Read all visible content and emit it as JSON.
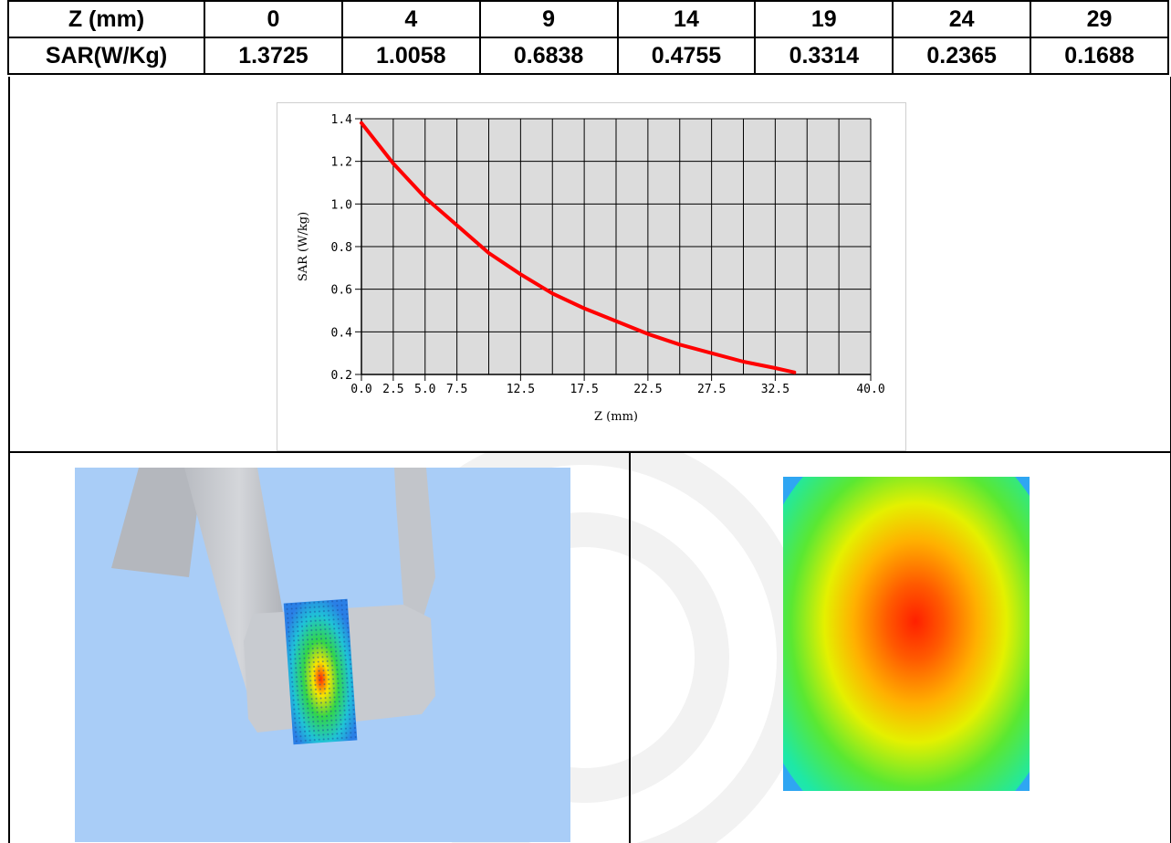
{
  "table": {
    "z_label": "Z (mm)",
    "sar_label": "SAR(W/Kg)",
    "z_values": [
      "0",
      "4",
      "9",
      "14",
      "19",
      "24",
      "29"
    ],
    "sar_values": [
      "1.3725",
      "1.0058",
      "0.6838",
      "0.4755",
      "0.3314",
      "0.2365",
      "0.1688"
    ]
  },
  "chart_data": {
    "type": "line",
    "xlabel": "Z (mm)",
    "ylabel": "SAR (W/kg)",
    "xlim": [
      0,
      40
    ],
    "ylim": [
      0.2,
      1.4
    ],
    "x_tick_labels": [
      "0.0",
      "2.5",
      "5.0",
      "7.5",
      "12.5",
      "17.5",
      "22.5",
      "27.5",
      "32.5",
      "40.0"
    ],
    "y_tick_labels": [
      "1.4",
      "1.2",
      "1.0",
      "0.8",
      "0.6",
      "0.4",
      "0.2"
    ],
    "grid": true,
    "series": [
      {
        "color": "#ff0000",
        "x": [
          0,
          2.5,
          5,
          7.5,
          10,
          12.5,
          15,
          17.5,
          20,
          22.5,
          25,
          27.5,
          30,
          32.5,
          34
        ],
        "y": [
          1.38,
          1.19,
          1.03,
          0.9,
          0.77,
          0.67,
          0.58,
          0.51,
          0.45,
          0.39,
          0.34,
          0.3,
          0.26,
          0.23,
          0.21
        ]
      }
    ]
  },
  "colors": {
    "chart_background": "#dcdcdc",
    "curve": "#ff0000",
    "scan_background": "#a9cdf7",
    "phantom": "#c8cbd0"
  },
  "images": {
    "left": "3d-phantom-sar-scan",
    "right": "2d-sar-distribution-heatmap"
  }
}
